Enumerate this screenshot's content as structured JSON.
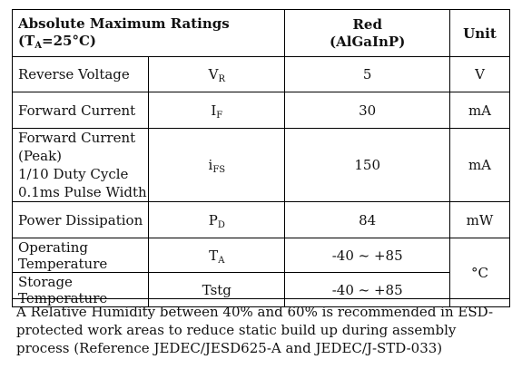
{
  "table": {
    "header": {
      "title_line1": "Absolute Maximum Ratings",
      "title_line2_prefix": "(T",
      "title_line2_sub": "A",
      "title_line2_suffix": "=25°C)",
      "value_line1": "Red",
      "value_line2": "(AlGaInP)",
      "unit": "Unit"
    },
    "rows": [
      {
        "param": "Reverse Voltage",
        "sym_main": "V",
        "sym_sub": "R",
        "value": "5",
        "unit": "V"
      },
      {
        "param": "Forward Current",
        "sym_main": "I",
        "sym_sub": "F",
        "value": "30",
        "unit": "mA"
      },
      {
        "param_lines": [
          "Forward Current (Peak)",
          "1/10 Duty Cycle",
          "0.1ms Pulse Width"
        ],
        "sym_main": "i",
        "sym_sub": "FS",
        "value": "150",
        "unit": "mA"
      },
      {
        "param": "Power Dissipation",
        "sym_main": "P",
        "sym_sub": "D",
        "value": "84",
        "unit": "mW"
      },
      {
        "param": "Operating Temperature",
        "sym_main": "T",
        "sym_sub": "A",
        "value": "-40 ~ +85",
        "unit": "°C"
      },
      {
        "param": "Storage Temperature",
        "sym_main": "Tstg",
        "sym_sub": "",
        "value": "-40 ~ +85"
      }
    ]
  },
  "note": "A Relative Humidity between 40% and 60% is recommended in ESD-protected work areas to reduce static build up during assembly process (Reference JEDEC/JESD625-A and JEDEC/J-STD-033)"
}
